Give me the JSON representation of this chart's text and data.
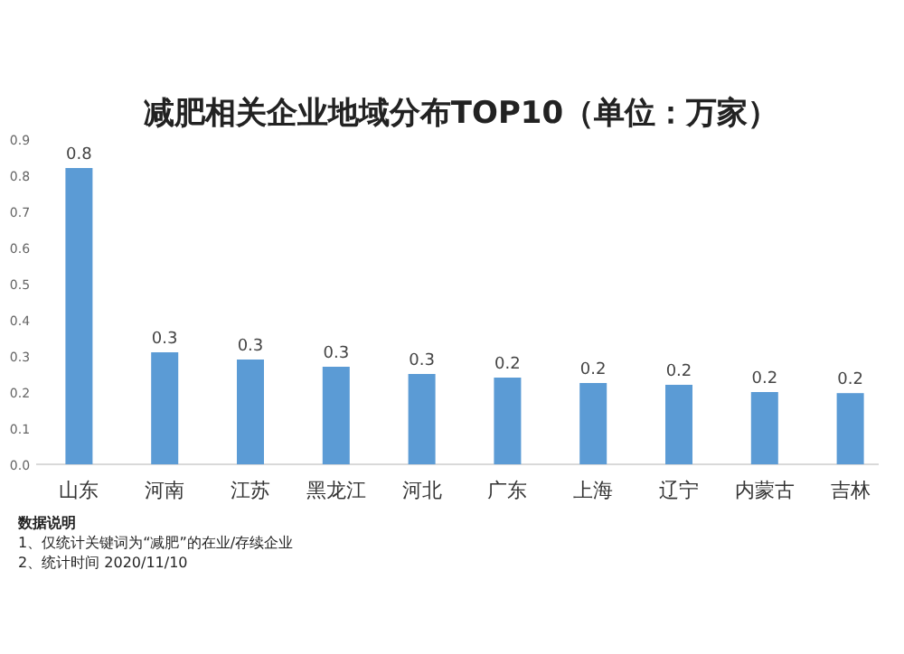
{
  "chart_data": {
    "type": "bar",
    "title": "减肥相关企业地域分布TOP10（单位：万家）",
    "categories": [
      "山东",
      "河南",
      "江苏",
      "黑龙江",
      "河北",
      "广东",
      "上海",
      "辽宁",
      "内蒙古",
      "吉林"
    ],
    "values": [
      0.82,
      0.31,
      0.29,
      0.27,
      0.25,
      0.24,
      0.225,
      0.22,
      0.2,
      0.197
    ],
    "value_labels": [
      "0.8",
      "0.3",
      "0.3",
      "0.3",
      "0.3",
      "0.2",
      "0.2",
      "0.2",
      "0.2",
      "0.2"
    ],
    "color": "#5b9bd5",
    "ylim": [
      0,
      0.9
    ],
    "yticks": [
      {
        "value": 0,
        "label": "0.0"
      },
      {
        "value": 0.1,
        "label": "0.1"
      },
      {
        "value": 0.2,
        "label": "0.2"
      },
      {
        "value": 0.3,
        "label": "0.3"
      },
      {
        "value": 0.4,
        "label": "0.4"
      },
      {
        "value": 0.5,
        "label": "0.5"
      },
      {
        "value": 0.6,
        "label": "0.6"
      },
      {
        "value": 0.7,
        "label": "0.7"
      },
      {
        "value": 0.8,
        "label": "0.8"
      },
      {
        "value": 0.9,
        "label": "0.9"
      }
    ],
    "annotations": [
      "数据说明",
      "1、仅统计关键词为“减肥”的在业/存续企业",
      "2、统计时间 2020/11/10"
    ]
  }
}
